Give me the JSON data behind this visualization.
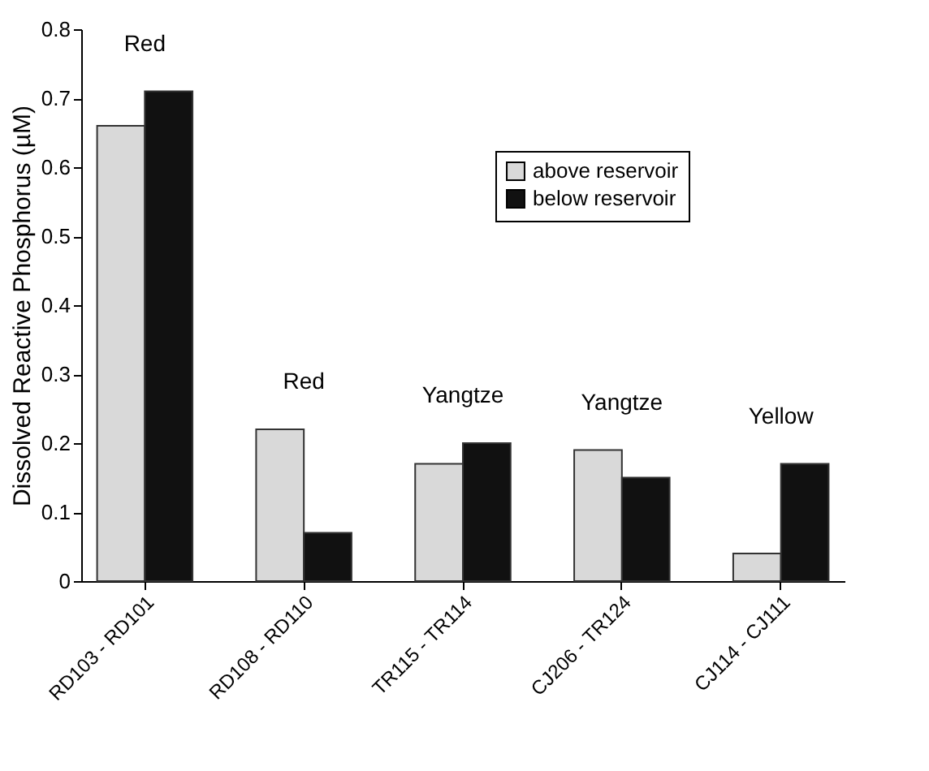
{
  "chart_data": {
    "type": "bar",
    "ylabel": "Dissolved Reactive Phosphorus (µM)",
    "categories": [
      "RD103 - RD101",
      "RD108 - RD110",
      "TR115 - TR114",
      "CJ206 - TR124",
      "CJ114 - CJ111"
    ],
    "series": [
      {
        "name": "above reservoir",
        "color": "#d9d9d9",
        "values": [
          0.66,
          0.22,
          0.17,
          0.19,
          0.04
        ]
      },
      {
        "name": "below reservoir",
        "color": "#111111",
        "values": [
          0.71,
          0.07,
          0.2,
          0.15,
          0.17
        ]
      }
    ],
    "ylim": [
      0,
      0.8
    ],
    "yticks": [
      0,
      0.1,
      0.2,
      0.3,
      0.4,
      0.5,
      0.6,
      0.7,
      0.8
    ],
    "annotations": [
      "Red",
      "Red",
      "Yangtze",
      "Yangtze",
      "Yellow"
    ],
    "grid": false,
    "legend": "top right"
  }
}
